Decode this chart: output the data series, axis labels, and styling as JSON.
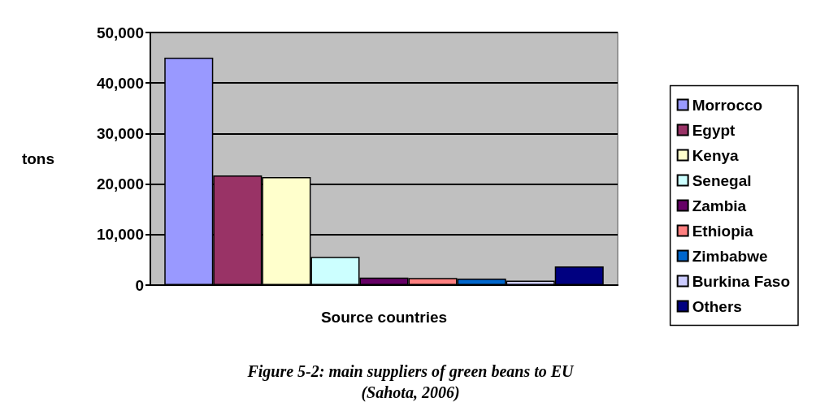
{
  "chart_data": {
    "type": "bar",
    "title": "Figure 5-2: main suppliers of green beans to EU",
    "subtitle": "(Sahota, 2006)",
    "xlabel": "Source countries",
    "ylabel": "tons",
    "categories": [
      null
    ],
    "series": [
      {
        "name": "Morrocco",
        "color": "#9999ff",
        "values": [
          45000
        ]
      },
      {
        "name": "Egypt",
        "color": "#993366",
        "values": [
          21700
        ]
      },
      {
        "name": "Kenya",
        "color": "#ffffcc",
        "values": [
          21400
        ]
      },
      {
        "name": "Senegal",
        "color": "#ccffff",
        "values": [
          5600
        ]
      },
      {
        "name": "Zambia",
        "color": "#660066",
        "values": [
          1500
        ]
      },
      {
        "name": "Ethiopia",
        "color": "#ff8080",
        "values": [
          1400
        ]
      },
      {
        "name": "Zimbabwe",
        "color": "#0066cc",
        "values": [
          1300
        ]
      },
      {
        "name": "Burkina Faso",
        "color": "#ccccff",
        "values": [
          900
        ]
      },
      {
        "name": "Others",
        "color": "#000080",
        "values": [
          3700
        ]
      }
    ],
    "ylim": [
      0,
      50000
    ],
    "yticks": [
      {
        "value": 0,
        "label": "0"
      },
      {
        "value": 10000,
        "label": "10,000"
      },
      {
        "value": 20000,
        "label": "20,000"
      },
      {
        "value": 30000,
        "label": "30,000"
      },
      {
        "value": 40000,
        "label": "40,000"
      },
      {
        "value": 50000,
        "label": "50,000"
      }
    ],
    "grid": "y",
    "legend": "right"
  }
}
